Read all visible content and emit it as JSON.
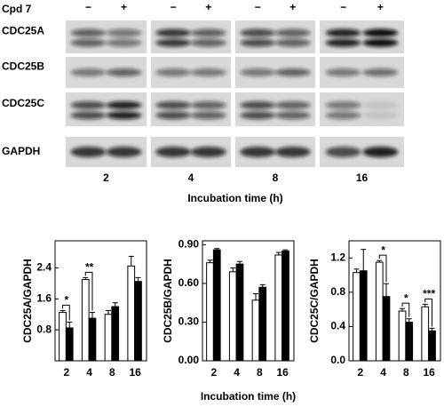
{
  "blot": {
    "treatment_label": "Cpd 7",
    "conditions": [
      "−",
      "+",
      "−",
      "+",
      "−",
      "+",
      "−",
      "+"
    ],
    "proteins": [
      "CDC25A",
      "CDC25B",
      "CDC25C",
      "GAPDH"
    ],
    "times": [
      "2",
      "4",
      "8",
      "16"
    ],
    "xlabel": "Incubation time (h)"
  },
  "chart_data": [
    {
      "type": "bar",
      "ylabel": "CDC25A/GAPDH",
      "categories": [
        "2",
        "4",
        "8",
        "16"
      ],
      "ylim": [
        0,
        3.1
      ],
      "yticks": [
        0.8,
        1.6,
        2.4
      ],
      "series": [
        {
          "color": "#ffffff",
          "values": [
            1.25,
            2.1,
            1.2,
            2.45
          ],
          "errors": [
            0.05,
            0.05,
            0.1,
            0.25
          ]
        },
        {
          "color": "#000000",
          "values": [
            0.85,
            1.1,
            1.4,
            2.05
          ],
          "errors": [
            0.15,
            0.15,
            0.1,
            0.1
          ]
        }
      ],
      "annotations": [
        {
          "category": 0,
          "text": "*"
        },
        {
          "category": 1,
          "text": "**"
        }
      ]
    },
    {
      "type": "bar",
      "ylabel": "CDC25B/GAPDH",
      "categories": [
        "2",
        "4",
        "8",
        "16"
      ],
      "ylim": [
        0,
        0.93
      ],
      "yticks": [
        {
          "value": 0,
          "label": "0.00"
        },
        {
          "value": 0.3,
          "label": "0.30"
        },
        {
          "value": 0.6,
          "label": "0.60"
        },
        {
          "value": 0.9,
          "label": "0.90"
        }
      ],
      "series": [
        {
          "color": "#ffffff",
          "values": [
            0.76,
            0.69,
            0.47,
            0.82
          ],
          "errors": [
            0.02,
            0.03,
            0.05,
            0.02
          ]
        },
        {
          "color": "#000000",
          "values": [
            0.86,
            0.75,
            0.57,
            0.85
          ],
          "errors": [
            0.01,
            0.02,
            0.02,
            0.01
          ]
        }
      ],
      "xlabel": "Incubation time (h)"
    },
    {
      "type": "bar",
      "ylabel": "CDC25C/GAPDH",
      "categories": [
        "2",
        "4",
        "8",
        "16"
      ],
      "ylim": [
        0,
        1.4
      ],
      "yticks": [
        {
          "value": 0,
          "label": "0.0"
        },
        {
          "value": 0.4,
          "label": "0.4"
        },
        {
          "value": 0.8,
          "label": "0.8"
        },
        {
          "value": 1.2,
          "label": "1.2"
        }
      ],
      "series": [
        {
          "color": "#ffffff",
          "values": [
            1.03,
            1.15,
            0.58,
            0.63
          ],
          "errors": [
            0.04,
            0.02,
            0.03,
            0.03
          ]
        },
        {
          "color": "#000000",
          "values": [
            1.05,
            0.75,
            0.45,
            0.35
          ],
          "errors": [
            0.25,
            0.15,
            0.04,
            0.03
          ]
        }
      ],
      "annotations": [
        {
          "category": 1,
          "text": "*"
        },
        {
          "category": 2,
          "text": "*"
        },
        {
          "category": 3,
          "text": "***"
        }
      ]
    }
  ]
}
